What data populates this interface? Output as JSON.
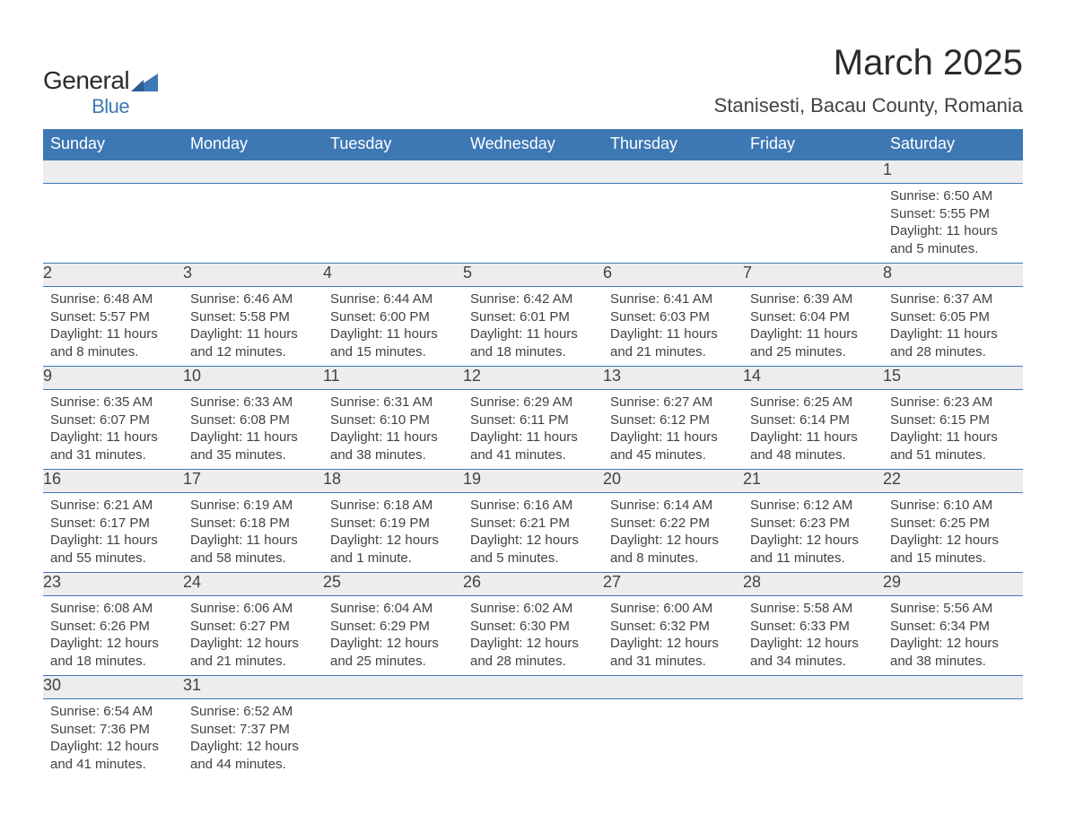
{
  "logo": {
    "general": "General",
    "blue": "Blue",
    "primary_color": "#3d78b4"
  },
  "header": {
    "month_title": "March 2025",
    "location": "Stanisesti, Bacau County, Romania"
  },
  "colors": {
    "header_bg": "#3d78b4",
    "header_text": "#ffffff",
    "daynum_bg": "#ededed",
    "text": "#424242",
    "row_border": "#3d78b4",
    "background": "#ffffff"
  },
  "typography": {
    "month_title_fontsize": 40,
    "location_fontsize": 22,
    "weekday_fontsize": 18,
    "daynum_fontsize": 18,
    "cell_fontsize": 15
  },
  "weekdays": [
    "Sunday",
    "Monday",
    "Tuesday",
    "Wednesday",
    "Thursday",
    "Friday",
    "Saturday"
  ],
  "weeks": [
    [
      {
        "day": "",
        "content": ""
      },
      {
        "day": "",
        "content": ""
      },
      {
        "day": "",
        "content": ""
      },
      {
        "day": "",
        "content": ""
      },
      {
        "day": "",
        "content": ""
      },
      {
        "day": "",
        "content": ""
      },
      {
        "day": "1",
        "content": "Sunrise: 6:50 AM\nSunset: 5:55 PM\nDaylight: 11 hours and 5 minutes."
      }
    ],
    [
      {
        "day": "2",
        "content": "Sunrise: 6:48 AM\nSunset: 5:57 PM\nDaylight: 11 hours and 8 minutes."
      },
      {
        "day": "3",
        "content": "Sunrise: 6:46 AM\nSunset: 5:58 PM\nDaylight: 11 hours and 12 minutes."
      },
      {
        "day": "4",
        "content": "Sunrise: 6:44 AM\nSunset: 6:00 PM\nDaylight: 11 hours and 15 minutes."
      },
      {
        "day": "5",
        "content": "Sunrise: 6:42 AM\nSunset: 6:01 PM\nDaylight: 11 hours and 18 minutes."
      },
      {
        "day": "6",
        "content": "Sunrise: 6:41 AM\nSunset: 6:03 PM\nDaylight: 11 hours and 21 minutes."
      },
      {
        "day": "7",
        "content": "Sunrise: 6:39 AM\nSunset: 6:04 PM\nDaylight: 11 hours and 25 minutes."
      },
      {
        "day": "8",
        "content": "Sunrise: 6:37 AM\nSunset: 6:05 PM\nDaylight: 11 hours and 28 minutes."
      }
    ],
    [
      {
        "day": "9",
        "content": "Sunrise: 6:35 AM\nSunset: 6:07 PM\nDaylight: 11 hours and 31 minutes."
      },
      {
        "day": "10",
        "content": "Sunrise: 6:33 AM\nSunset: 6:08 PM\nDaylight: 11 hours and 35 minutes."
      },
      {
        "day": "11",
        "content": "Sunrise: 6:31 AM\nSunset: 6:10 PM\nDaylight: 11 hours and 38 minutes."
      },
      {
        "day": "12",
        "content": "Sunrise: 6:29 AM\nSunset: 6:11 PM\nDaylight: 11 hours and 41 minutes."
      },
      {
        "day": "13",
        "content": "Sunrise: 6:27 AM\nSunset: 6:12 PM\nDaylight: 11 hours and 45 minutes."
      },
      {
        "day": "14",
        "content": "Sunrise: 6:25 AM\nSunset: 6:14 PM\nDaylight: 11 hours and 48 minutes."
      },
      {
        "day": "15",
        "content": "Sunrise: 6:23 AM\nSunset: 6:15 PM\nDaylight: 11 hours and 51 minutes."
      }
    ],
    [
      {
        "day": "16",
        "content": "Sunrise: 6:21 AM\nSunset: 6:17 PM\nDaylight: 11 hours and 55 minutes."
      },
      {
        "day": "17",
        "content": "Sunrise: 6:19 AM\nSunset: 6:18 PM\nDaylight: 11 hours and 58 minutes."
      },
      {
        "day": "18",
        "content": "Sunrise: 6:18 AM\nSunset: 6:19 PM\nDaylight: 12 hours and 1 minute."
      },
      {
        "day": "19",
        "content": "Sunrise: 6:16 AM\nSunset: 6:21 PM\nDaylight: 12 hours and 5 minutes."
      },
      {
        "day": "20",
        "content": "Sunrise: 6:14 AM\nSunset: 6:22 PM\nDaylight: 12 hours and 8 minutes."
      },
      {
        "day": "21",
        "content": "Sunrise: 6:12 AM\nSunset: 6:23 PM\nDaylight: 12 hours and 11 minutes."
      },
      {
        "day": "22",
        "content": "Sunrise: 6:10 AM\nSunset: 6:25 PM\nDaylight: 12 hours and 15 minutes."
      }
    ],
    [
      {
        "day": "23",
        "content": "Sunrise: 6:08 AM\nSunset: 6:26 PM\nDaylight: 12 hours and 18 minutes."
      },
      {
        "day": "24",
        "content": "Sunrise: 6:06 AM\nSunset: 6:27 PM\nDaylight: 12 hours and 21 minutes."
      },
      {
        "day": "25",
        "content": "Sunrise: 6:04 AM\nSunset: 6:29 PM\nDaylight: 12 hours and 25 minutes."
      },
      {
        "day": "26",
        "content": "Sunrise: 6:02 AM\nSunset: 6:30 PM\nDaylight: 12 hours and 28 minutes."
      },
      {
        "day": "27",
        "content": "Sunrise: 6:00 AM\nSunset: 6:32 PM\nDaylight: 12 hours and 31 minutes."
      },
      {
        "day": "28",
        "content": "Sunrise: 5:58 AM\nSunset: 6:33 PM\nDaylight: 12 hours and 34 minutes."
      },
      {
        "day": "29",
        "content": "Sunrise: 5:56 AM\nSunset: 6:34 PM\nDaylight: 12 hours and 38 minutes."
      }
    ],
    [
      {
        "day": "30",
        "content": "Sunrise: 6:54 AM\nSunset: 7:36 PM\nDaylight: 12 hours and 41 minutes."
      },
      {
        "day": "31",
        "content": "Sunrise: 6:52 AM\nSunset: 7:37 PM\nDaylight: 12 hours and 44 minutes."
      },
      {
        "day": "",
        "content": ""
      },
      {
        "day": "",
        "content": ""
      },
      {
        "day": "",
        "content": ""
      },
      {
        "day": "",
        "content": ""
      },
      {
        "day": "",
        "content": ""
      }
    ]
  ]
}
